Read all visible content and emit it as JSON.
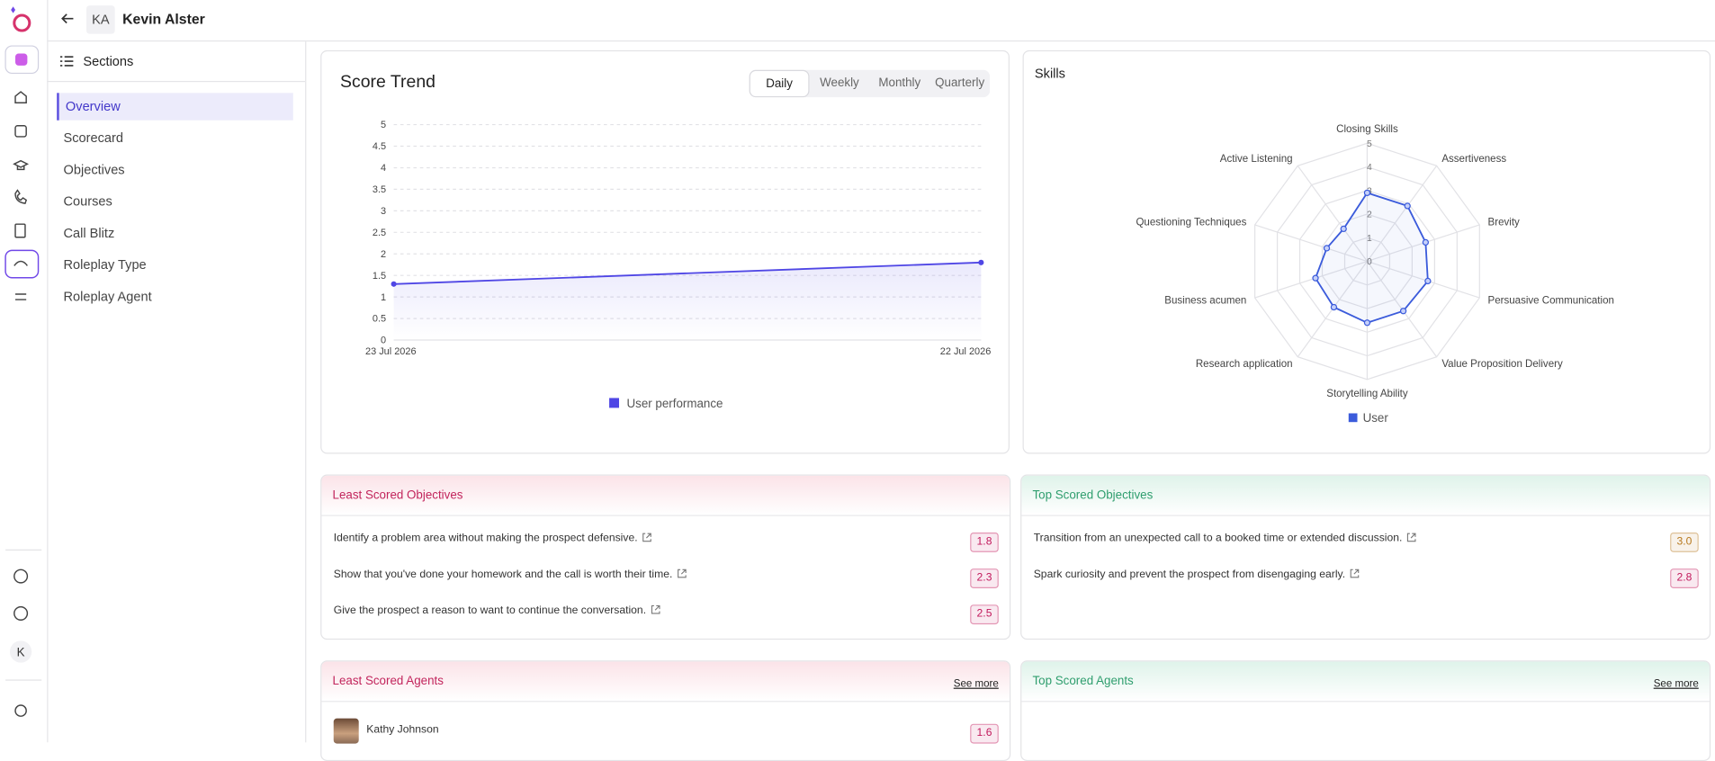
{
  "header": {
    "avatar": "KA",
    "name": "Kevin Alster"
  },
  "rail": {
    "user_initial": "K"
  },
  "sidebar": {
    "title": "Sections",
    "items": [
      "Overview",
      "Scorecard",
      "Objectives",
      "Courses",
      "Call Blitz",
      "Roleplay Type",
      "Roleplay Agent"
    ]
  },
  "score_trend": {
    "type": "line",
    "title": "Score Trend",
    "tabs": [
      "Daily",
      "Weekly",
      "Monthly",
      "Quarterly"
    ],
    "x": [
      "23 Jul 2026",
      "22 Jul 2026"
    ],
    "series": [
      {
        "name": "User performance",
        "color": "#4f46e5",
        "values": [
          1.3,
          1.8
        ]
      }
    ],
    "ylim": [
      0,
      5
    ],
    "yticks": [
      0,
      0.5,
      1,
      1.5,
      2,
      2.5,
      3,
      3.5,
      4,
      4.5,
      5
    ],
    "grid": true
  },
  "skills": {
    "type": "radar",
    "title": "Skills",
    "categories": [
      "Closing Skills",
      "Assertiveness",
      "Brevity",
      "Persuasive Communication",
      "Value Proposition Delivery",
      "Storytelling Ability",
      "Research application",
      "Business acumen",
      "Questioning Techniques",
      "Active Listening"
    ],
    "series": [
      {
        "name": "User",
        "color": "#3b5bdb",
        "values": [
          2.9,
          2.9,
          2.6,
          2.7,
          2.6,
          2.6,
          2.4,
          2.3,
          1.8,
          1.7
        ]
      }
    ],
    "rlim": [
      0,
      5
    ],
    "rticks": [
      0,
      1,
      2,
      3,
      4,
      5
    ]
  },
  "least_objectives": {
    "title": "Least Scored Objectives",
    "rows": [
      {
        "text": "Identify a problem area without making the prospect defensive.",
        "score": "1.8",
        "badge_color": "#c2185b"
      },
      {
        "text": "Show that you've done your homework and the call is worth their time.",
        "score": "2.3",
        "badge_color": "#c2185b"
      },
      {
        "text": "Give the prospect a reason to want to continue the conversation.",
        "score": "2.5",
        "badge_color": "#c2185b"
      }
    ]
  },
  "top_objectives": {
    "title": "Top Scored Objectives",
    "rows": [
      {
        "text": "Transition from an unexpected call to a booked time or extended discussion.",
        "score": "3.0",
        "badge_color": "#b7791f"
      },
      {
        "text": "Spark curiosity and prevent the prospect from disengaging early.",
        "score": "2.8",
        "badge_color": "#c2185b"
      }
    ]
  },
  "least_agents": {
    "title": "Least Scored Agents",
    "link": "See more",
    "rows": [
      {
        "name": "Kathy Johnson",
        "score": "1.6",
        "badge_color": "#c2185b"
      }
    ]
  },
  "top_agents": {
    "title": "Top Scored Agents",
    "link": "See more",
    "rows": []
  }
}
